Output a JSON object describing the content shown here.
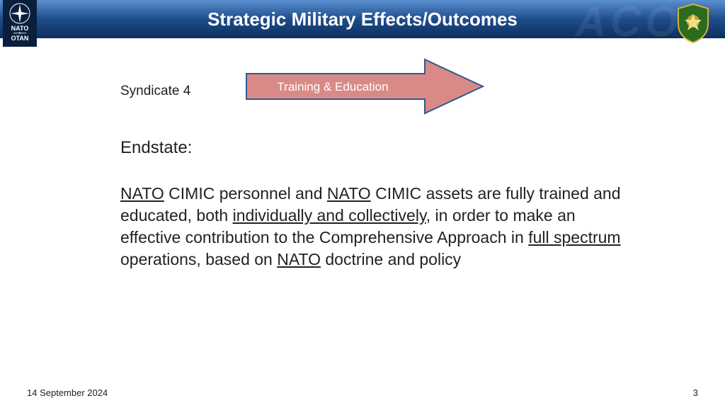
{
  "header": {
    "title": "Strategic Military Effects/Outcomes",
    "nato_top": "NATO",
    "nato_bottom": "OTAN",
    "bg_gradient_top": "#5a8fd0",
    "bg_gradient_mid": "#1e4d8c",
    "bg_gradient_bottom": "#0d2f5c",
    "watermark": "ACO"
  },
  "arrow": {
    "label": "Training & Education",
    "fill": "#d98a87",
    "stroke": "#2f5a8f",
    "text_color": "#ffffff",
    "label_fontsize": 17
  },
  "syndicate": "Syndicate 4",
  "endstate_label": "Endstate:",
  "body": {
    "segments": [
      {
        "t": "NATO",
        "u": true
      },
      {
        "t": " CIMIC personnel and ",
        "u": false
      },
      {
        "t": "NATO",
        "u": true
      },
      {
        "t": " CIMIC assets are fully trained and educated, both ",
        "u": false
      },
      {
        "t": "individually and collectively",
        "u": true
      },
      {
        "t": ", in order to make an effective contribution to the Comprehensive Approach in ",
        "u": false
      },
      {
        "t": "full spectrum ",
        "u": true
      },
      {
        "t": "operations, based on ",
        "u": false
      },
      {
        "t": "NATO",
        "u": true
      },
      {
        "t": " doctrine and policy",
        "u": false
      }
    ],
    "fontsize": 23,
    "color": "#222222"
  },
  "footer": {
    "date": "14 September 2024",
    "page": "3"
  },
  "shield": {
    "fill": "#2a6b1f",
    "border": "#d4af37"
  }
}
